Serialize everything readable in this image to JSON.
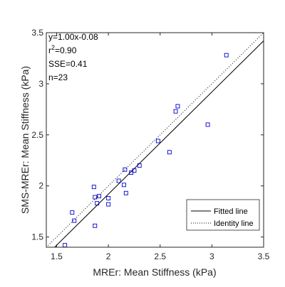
{
  "chart_data": {
    "type": "scatter",
    "xlabel": "MREr: Mean Stiffness (kPa)",
    "ylabel": "SMS-MREr: Mean Stiffness (kPa)",
    "xlim": [
      1.4,
      3.5
    ],
    "ylim": [
      1.4,
      3.5
    ],
    "xticks": [
      "1.5",
      "2",
      "2.5",
      "3",
      "3.5"
    ],
    "yticks": [
      "1.5",
      "2",
      "2.5",
      "3",
      "3.5"
    ],
    "grid": false,
    "legend_placement": "bottom-right",
    "stats": {
      "equation": "y=1.00x-0.08",
      "r2_prefix": "r",
      "r2_sup": "2",
      "r2_value": "=0.90",
      "sse": "SSE=0.41",
      "n": "n=23"
    },
    "series": [
      {
        "name": "",
        "marker": "square",
        "color": "#0000cc",
        "points": [
          [
            1.58,
            1.42
          ],
          [
            1.65,
            1.74
          ],
          [
            1.67,
            1.66
          ],
          [
            1.86,
            1.99
          ],
          [
            1.87,
            1.61
          ],
          [
            1.87,
            1.89
          ],
          [
            1.89,
            1.83
          ],
          [
            1.91,
            1.9
          ],
          [
            2.0,
            1.88
          ],
          [
            2.0,
            1.82
          ],
          [
            2.1,
            2.05
          ],
          [
            2.15,
            2.01
          ],
          [
            2.16,
            2.16
          ],
          [
            2.17,
            1.93
          ],
          [
            2.22,
            2.13
          ],
          [
            2.25,
            2.15
          ],
          [
            2.3,
            2.2
          ],
          [
            2.48,
            2.44
          ],
          [
            2.59,
            2.33
          ],
          [
            2.65,
            2.73
          ],
          [
            2.67,
            2.78
          ],
          [
            2.96,
            2.6
          ],
          [
            3.14,
            3.28
          ]
        ]
      },
      {
        "name": "Fitted line",
        "style": "solid",
        "color": "#000000",
        "slope": 1.0,
        "intercept": -0.08
      },
      {
        "name": "Identity line",
        "style": "dotted",
        "color": "#000000",
        "slope": 1.0,
        "intercept": 0.0
      }
    ]
  }
}
